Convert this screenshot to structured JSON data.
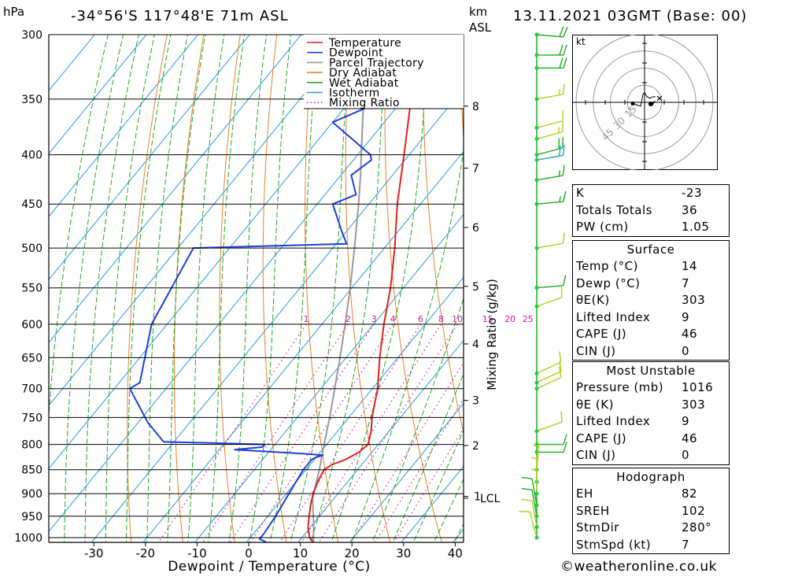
{
  "header": {
    "location": "-34°56'S  117°48'E  71m  ASL",
    "datetime": "13.11.2021  03GMT  (Base: 00)",
    "hpa_label": "hPa",
    "km_label": "km",
    "asl_label": "ASL"
  },
  "chart_data": {
    "type": "line",
    "title": "-34°56'S  117°48'E  71m  ASL",
    "xlabel": "Dewpoint / Temperature (°C)",
    "ylabel": "hPa",
    "secondary_ylabel": "Mixing Ratio (g/kg)",
    "x_ticks": [
      -30,
      -20,
      -10,
      0,
      10,
      20,
      30,
      40
    ],
    "pressure_levels": [
      300,
      350,
      400,
      450,
      500,
      550,
      600,
      650,
      700,
      750,
      800,
      850,
      900,
      950,
      1000
    ],
    "ylim": [
      300,
      1000
    ],
    "km_ticks": [
      {
        "label": "8",
        "p": 356
      },
      {
        "label": "7",
        "p": 413
      },
      {
        "label": "6",
        "p": 476
      },
      {
        "label": "5",
        "p": 548
      },
      {
        "label": "4",
        "p": 629
      },
      {
        "label": "3",
        "p": 720
      },
      {
        "label": "2",
        "p": 802
      },
      {
        "label": "1",
        "p": 906
      }
    ],
    "lcl": {
      "label": "LCL",
      "p": 910
    },
    "mixing_ratio_labels": [
      "1",
      "2",
      "3",
      "4",
      "6",
      "8",
      "10",
      "15",
      "20",
      "25"
    ],
    "legend": [
      {
        "name": "Temperature",
        "color": "#e02020",
        "style": "solid"
      },
      {
        "name": "Dewpoint",
        "color": "#1f3fd8",
        "style": "solid"
      },
      {
        "name": "Parcel Trajectory",
        "color": "#9a9a9a",
        "style": "solid"
      },
      {
        "name": "Dry Adiabat",
        "color": "#e8822a",
        "style": "solid"
      },
      {
        "name": "Wet Adiabat",
        "color": "#22aa22",
        "style": "solid"
      },
      {
        "name": "Isotherm",
        "color": "#2a9ad8",
        "style": "solid"
      },
      {
        "name": "Mixing Ratio",
        "color": "#cc1f9a",
        "style": "dotted"
      }
    ],
    "legend_position": "top-right",
    "series": [
      {
        "name": "Temperature",
        "points": [
          [
            1012,
            13.0
          ],
          [
            1000,
            11.5
          ],
          [
            975,
            9.5
          ],
          [
            950,
            8.0
          ],
          [
            925,
            6.5
          ],
          [
            900,
            5.2
          ],
          [
            875,
            4.2
          ],
          [
            850,
            3.5
          ],
          [
            840,
            4.2
          ],
          [
            830,
            6.0
          ],
          [
            815,
            7.5
          ],
          [
            800,
            8.0
          ],
          [
            775,
            6.5
          ],
          [
            750,
            4.5
          ],
          [
            700,
            1.0
          ],
          [
            650,
            -3.5
          ],
          [
            600,
            -8.0
          ],
          [
            550,
            -12.5
          ],
          [
            500,
            -18.0
          ],
          [
            450,
            -24.5
          ],
          [
            400,
            -31.0
          ],
          [
            350,
            -38.5
          ],
          [
            320,
            -44.5
          ],
          [
            300,
            -48.0
          ]
        ]
      },
      {
        "name": "Dewpoint",
        "points": [
          [
            1012,
            4.0
          ],
          [
            1003,
            2.0
          ],
          [
            990,
            2.0
          ],
          [
            950,
            1.5
          ],
          [
            900,
            0.5
          ],
          [
            850,
            -0.5
          ],
          [
            830,
            -0.5
          ],
          [
            825,
            0.0
          ],
          [
            821,
            1.0
          ],
          [
            818,
            -3.0
          ],
          [
            810,
            -17.0
          ],
          [
            805,
            -12.0
          ],
          [
            800,
            -12.0
          ],
          [
            795,
            -32.0
          ],
          [
            760,
            -38.0
          ],
          [
            700,
            -47.0
          ],
          [
            690,
            -46.0
          ],
          [
            600,
            -53.0
          ],
          [
            500,
            -57.0
          ],
          [
            495,
            -28.0
          ],
          [
            480,
            -31.0
          ],
          [
            450,
            -37.0
          ],
          [
            440,
            -34.0
          ],
          [
            420,
            -38.0
          ],
          [
            405,
            -36.5
          ],
          [
            400,
            -37.5
          ],
          [
            370,
            -50.0
          ],
          [
            358,
            -46.0
          ],
          [
            345,
            -52.0
          ],
          [
            340,
            -48.0
          ],
          [
            320,
            -59.0
          ],
          [
            300,
            -64.0
          ]
        ]
      },
      {
        "name": "Parcel Trajectory",
        "points": [
          [
            1012,
            13.0
          ],
          [
            975,
            10.6
          ],
          [
            950,
            8.8
          ],
          [
            910,
            5.8
          ],
          [
            850,
            2.6
          ],
          [
            800,
            -0.5
          ],
          [
            750,
            -3.7
          ],
          [
            700,
            -7.3
          ],
          [
            650,
            -11.2
          ],
          [
            600,
            -15.5
          ],
          [
            550,
            -20.3
          ],
          [
            500,
            -25.8
          ],
          [
            450,
            -32.0
          ],
          [
            420,
            -36.2
          ],
          [
            400,
            -39.3
          ],
          [
            350,
            -47.7
          ],
          [
            300,
            -57.6
          ]
        ]
      }
    ],
    "wind_barbs": [
      {
        "p": 300,
        "dir": 275,
        "kt": 20,
        "color": "#22aa22"
      },
      {
        "p": 315,
        "dir": 270,
        "kt": 20,
        "color": "#22aa22"
      },
      {
        "p": 325,
        "dir": 270,
        "kt": 20,
        "color": "#22aa22"
      },
      {
        "p": 350,
        "dir": 260,
        "kt": 15,
        "color": "#b0d020"
      },
      {
        "p": 375,
        "dir": 255,
        "kt": 10,
        "color": "#b0d020"
      },
      {
        "p": 385,
        "dir": 255,
        "kt": 15,
        "color": "#b0d020"
      },
      {
        "p": 400,
        "dir": 255,
        "kt": 20,
        "color": "#22aa22"
      },
      {
        "p": 405,
        "dir": 260,
        "kt": 20,
        "color": "#22aaaa"
      },
      {
        "p": 425,
        "dir": 260,
        "kt": 15,
        "color": "#22aa22"
      },
      {
        "p": 450,
        "dir": 265,
        "kt": 15,
        "color": "#22aa22"
      },
      {
        "p": 500,
        "dir": 260,
        "kt": 10,
        "color": "#b0d020"
      },
      {
        "p": 550,
        "dir": 265,
        "kt": 10,
        "color": "#22aa22"
      },
      {
        "p": 575,
        "dir": 250,
        "kt": 10,
        "color": "#b0d020"
      },
      {
        "p": 675,
        "dir": 245,
        "kt": 10,
        "color": "#b0d020"
      },
      {
        "p": 690,
        "dir": 245,
        "kt": 10,
        "color": "#b0d020"
      },
      {
        "p": 700,
        "dir": 245,
        "kt": 10,
        "color": "#b0d020"
      },
      {
        "p": 775,
        "dir": 250,
        "kt": 10,
        "color": "#b0d020"
      },
      {
        "p": 800,
        "dir": 270,
        "kt": 10,
        "color": "#22aa22"
      },
      {
        "p": 815,
        "dir": 270,
        "kt": 10,
        "color": "#22aa22"
      },
      {
        "p": 850,
        "dir": 185,
        "kt": 5,
        "color": "#b0d020"
      },
      {
        "p": 875,
        "dir": 180,
        "kt": 5,
        "color": "#b0d020"
      },
      {
        "p": 900,
        "dir": 180,
        "kt": 5,
        "color": "#b0d020"
      },
      {
        "p": 925,
        "dir": 170,
        "kt": 10,
        "color": "#22aa22"
      },
      {
        "p": 950,
        "dir": 170,
        "kt": 10,
        "color": "#22aa22"
      },
      {
        "p": 975,
        "dir": 170,
        "kt": 10,
        "color": "#b0d020"
      },
      {
        "p": 1000,
        "dir": 165,
        "kt": 10,
        "color": "#b0d020"
      }
    ]
  },
  "hodograph": {
    "unit_label": "kt",
    "ring_labels": [
      "15",
      "30",
      "45"
    ],
    "points": [
      [
        -30,
        -3
      ],
      [
        -10,
        -10
      ],
      [
        -4,
        20
      ],
      [
        0,
        25
      ],
      [
        6,
        14
      ],
      [
        14,
        10
      ],
      [
        20,
        14
      ],
      [
        28,
        14
      ]
    ]
  },
  "indices": {
    "rows": [
      {
        "label": "K",
        "value": "-23"
      },
      {
        "label": "Totals Totals",
        "value": "36"
      },
      {
        "label": "PW (cm)",
        "value": "1.05"
      }
    ]
  },
  "surface": {
    "title": "Surface",
    "rows": [
      {
        "label": "Temp (°C)",
        "value": "14"
      },
      {
        "label": "Dewp (°C)",
        "value": "7"
      },
      {
        "label": "θE(K)",
        "value": "303"
      },
      {
        "label": "Lifted Index",
        "value": "9"
      },
      {
        "label": "CAPE (J)",
        "value": "46"
      },
      {
        "label": "CIN (J)",
        "value": "0"
      }
    ]
  },
  "most_unstable": {
    "title": "Most Unstable",
    "rows": [
      {
        "label": "Pressure (mb)",
        "value": "1016"
      },
      {
        "label": "θE (K)",
        "value": "303"
      },
      {
        "label": "Lifted Index",
        "value": "9"
      },
      {
        "label": "CAPE (J)",
        "value": "46"
      },
      {
        "label": "CIN (J)",
        "value": "0"
      }
    ]
  },
  "hodograph_table": {
    "title": "Hodograph",
    "rows": [
      {
        "label": "EH",
        "value": "82"
      },
      {
        "label": "SREH",
        "value": "102"
      },
      {
        "label": "StmDir",
        "value": "280°"
      },
      {
        "label": "StmSpd (kt)",
        "value": "7"
      }
    ]
  },
  "footer": {
    "copyright_symbol": "©",
    "website": "weatheronline.co.uk"
  }
}
